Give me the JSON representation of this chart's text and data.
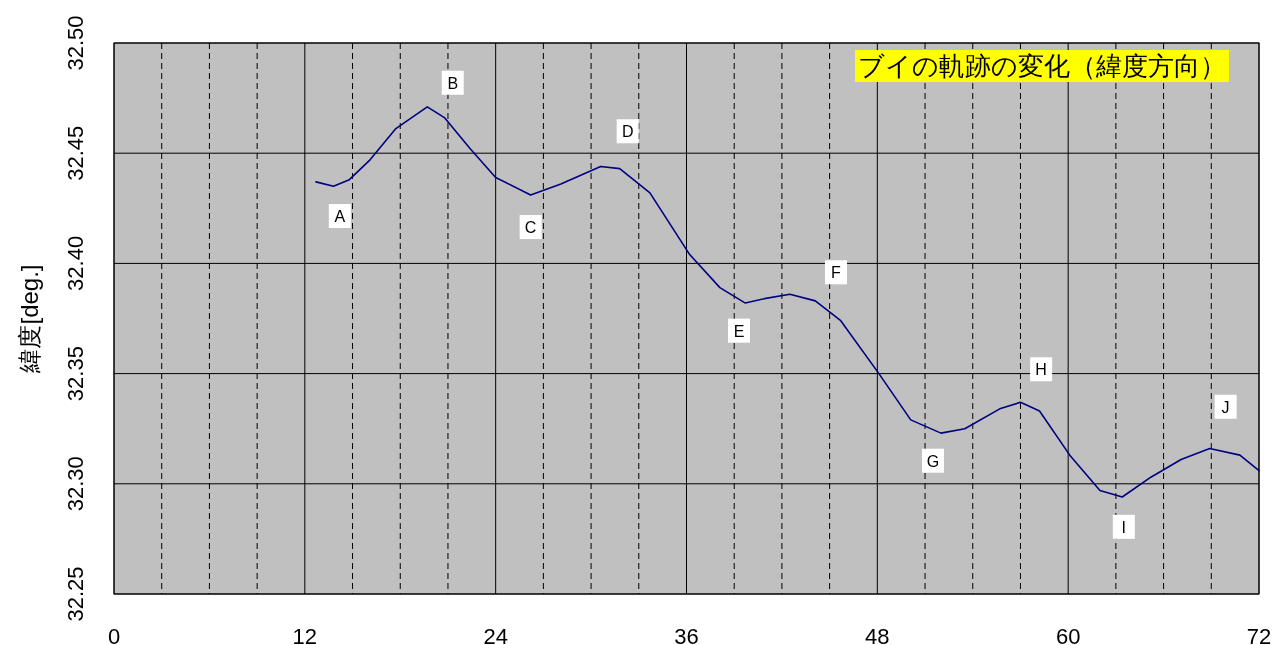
{
  "chart_data": {
    "type": "line",
    "title": "ブイの軌跡の変化（緯度方向）",
    "ylabel": "緯度[deg.]",
    "x": [
      12.7,
      13.8,
      14.8,
      16.1,
      17.7,
      19.7,
      20.8,
      22.4,
      24.0,
      26.2,
      28.1,
      30.6,
      31.8,
      33.7,
      36.2,
      38.1,
      39.7,
      40.9,
      42.5,
      44.1,
      45.7,
      48.1,
      50.1,
      52.0,
      53.5,
      55.7,
      57.0,
      58.2,
      60.1,
      62.0,
      63.4,
      65.2,
      67.1,
      68.9,
      70.8,
      72.0
    ],
    "series": [
      {
        "color": "#000080",
        "values": [
          32.437,
          32.435,
          32.438,
          32.447,
          32.461,
          32.471,
          32.466,
          32.452,
          32.439,
          32.431,
          32.436,
          32.444,
          32.443,
          32.432,
          32.404,
          32.389,
          32.382,
          32.384,
          32.386,
          32.383,
          32.374,
          32.35,
          32.329,
          32.323,
          32.325,
          32.334,
          32.337,
          32.333,
          32.313,
          32.297,
          32.294,
          32.303,
          32.311,
          32.316,
          32.313,
          32.306
        ]
      }
    ],
    "xlim": [
      0,
      72
    ],
    "ylim": [
      32.25,
      32.5
    ],
    "xticks": [
      0,
      {
        "value": 3,
        "label": null
      },
      {
        "value": 6,
        "label": null
      },
      {
        "value": 9,
        "label": null
      },
      12,
      {
        "value": 15,
        "label": null
      },
      {
        "value": 18,
        "label": null
      },
      {
        "value": 21,
        "label": null
      },
      24,
      {
        "value": 27,
        "label": null
      },
      {
        "value": 30,
        "label": null
      },
      {
        "value": 33,
        "label": null
      },
      36,
      {
        "value": 39,
        "label": null
      },
      {
        "value": 42,
        "label": null
      },
      {
        "value": 45,
        "label": null
      },
      48,
      {
        "value": 51,
        "label": null
      },
      {
        "value": 54,
        "label": null
      },
      {
        "value": 57,
        "label": null
      },
      60,
      {
        "value": 63,
        "label": null
      },
      {
        "value": 66,
        "label": null
      },
      {
        "value": 69,
        "label": null
      },
      72
    ],
    "yticks": [
      {
        "value": 32.25,
        "label": "32.25"
      },
      {
        "value": 32.3,
        "label": "32.30"
      },
      {
        "value": 32.35,
        "label": "32.35"
      },
      {
        "value": 32.4,
        "label": "32.40"
      },
      {
        "value": 32.45,
        "label": "32.45"
      },
      {
        "value": 32.5,
        "label": "32.50"
      }
    ],
    "grid": true,
    "marker": "none",
    "line_style": "solid",
    "annotations": [
      {
        "text": "A",
        "x": 14.2,
        "y": 32.436
      },
      {
        "text": "B",
        "x": 21.3,
        "y": 32.462
      },
      {
        "text": "C",
        "x": 26.2,
        "y": 32.431
      },
      {
        "text": "D",
        "x": 32.3,
        "y": 32.44
      },
      {
        "text": "E",
        "x": 39.3,
        "y": 32.384
      },
      {
        "text": "F",
        "x": 45.4,
        "y": 32.376
      },
      {
        "text": "G",
        "x": 51.5,
        "y": 32.325
      },
      {
        "text": "H",
        "x": 58.3,
        "y": 32.332
      },
      {
        "text": "I",
        "x": 63.5,
        "y": 32.295
      },
      {
        "text": "J",
        "x": 69.9,
        "y": 32.315
      }
    ]
  }
}
